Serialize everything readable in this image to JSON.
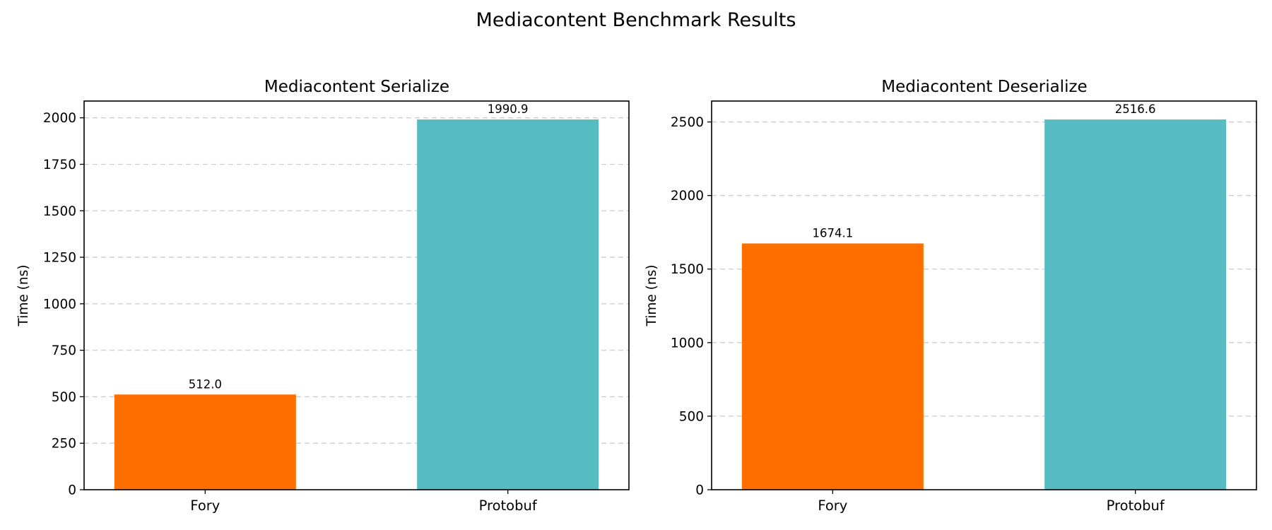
{
  "figure": {
    "title": "Mediacontent Benchmark Results"
  },
  "chart_data": [
    {
      "type": "bar",
      "title": "Mediacontent Serialize",
      "xlabel": "",
      "ylabel": "Time (ns)",
      "categories": [
        "Fory",
        "Protobuf"
      ],
      "values": [
        512.0,
        1990.9
      ],
      "value_labels": [
        "512.0",
        "1990.9"
      ],
      "colors": [
        "#ff6f00",
        "#56bcc1"
      ],
      "ylim": [
        0,
        2090
      ],
      "yticks": [
        0,
        250,
        500,
        750,
        1000,
        1250,
        1500,
        1750,
        2000
      ],
      "grid": "y-dashed",
      "legend": "none"
    },
    {
      "type": "bar",
      "title": "Mediacontent Deserialize",
      "xlabel": "",
      "ylabel": "Time (ns)",
      "categories": [
        "Fory",
        "Protobuf"
      ],
      "values": [
        1674.1,
        2516.6
      ],
      "value_labels": [
        "1674.1",
        "2516.6"
      ],
      "colors": [
        "#ff6f00",
        "#56bcc1"
      ],
      "ylim": [
        0,
        2642
      ],
      "yticks": [
        0,
        500,
        1000,
        1500,
        2000,
        2500
      ],
      "grid": "y-dashed",
      "legend": "none"
    }
  ]
}
